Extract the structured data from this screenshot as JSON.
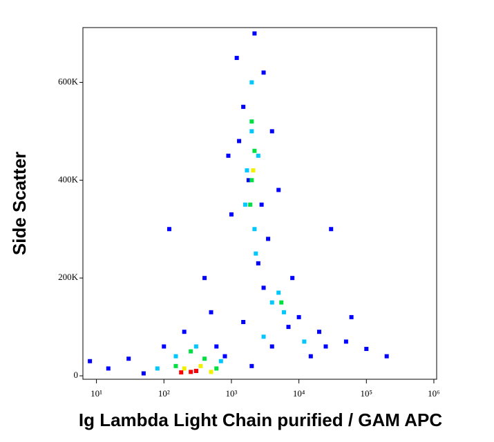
{
  "chart_data": {
    "type": "scatter",
    "xlabel": "Ig Lambda Light Chain purified / GAM APC",
    "ylabel": "Side Scatter",
    "xscale": "log",
    "xlim": [
      6.3,
      1100000
    ],
    "xticks": [
      {
        "value": 10,
        "label": "10¹"
      },
      {
        "value": 100,
        "label": "10²"
      },
      {
        "value": 1000,
        "label": "10³"
      },
      {
        "value": 10000,
        "label": "10⁴"
      },
      {
        "value": 100000,
        "label": "10⁵"
      },
      {
        "value": 1000000,
        "label": "10⁶"
      }
    ],
    "ylim": [
      -7000,
      712000
    ],
    "yticks": [
      0,
      {
        "value": 200000,
        "label": "200K"
      },
      {
        "value": 400000,
        "label": "400K"
      },
      {
        "value": 600000,
        "label": "600K"
      }
    ],
    "series": [
      {
        "color": "#0000ff",
        "x": [
          1200,
          3000,
          1500,
          4000,
          900,
          5000,
          1000,
          3500,
          2500,
          8000,
          3000,
          10000,
          20000,
          50000,
          100000,
          15000,
          500,
          200,
          100,
          30,
          15,
          50,
          800,
          1500,
          60000,
          200000,
          400,
          2200,
          7000,
          300,
          2000,
          4000,
          1800,
          2800,
          1300,
          600,
          25000,
          8,
          120,
          30000
        ],
        "values": [
          650000,
          620000,
          550000,
          500000,
          450000,
          380000,
          330000,
          280000,
          230000,
          200000,
          180000,
          120000,
          90000,
          70000,
          55000,
          40000,
          130000,
          90000,
          60000,
          35000,
          15000,
          5000,
          40000,
          110000,
          120000,
          40000,
          200000,
          700000,
          100000,
          10000,
          20000,
          60000,
          400000,
          350000,
          480000,
          60000,
          60000,
          30000,
          300000,
          300000
        ]
      },
      {
        "color": "#00c8ff",
        "x": [
          2000,
          1700,
          2500,
          2200,
          1600,
          5000,
          6000,
          4000,
          300,
          150,
          700,
          80,
          2000,
          3000,
          12000,
          2300
        ],
        "values": [
          500000,
          420000,
          450000,
          300000,
          350000,
          170000,
          130000,
          150000,
          60000,
          40000,
          30000,
          15000,
          600000,
          80000,
          70000,
          250000
        ]
      },
      {
        "color": "#00e040",
        "x": [
          2000,
          2200,
          1900,
          5500,
          250,
          400,
          150,
          600,
          2000
        ],
        "values": [
          400000,
          460000,
          350000,
          150000,
          50000,
          35000,
          20000,
          15000,
          520000
        ]
      },
      {
        "color": "#f0f000",
        "x": [
          200,
          350,
          500,
          2100
        ],
        "values": [
          15000,
          20000,
          8000,
          420000
        ]
      },
      {
        "color": "#ff0000",
        "x": [
          250,
          300,
          180
        ],
        "values": [
          8000,
          10000,
          7000
        ]
      }
    ]
  }
}
